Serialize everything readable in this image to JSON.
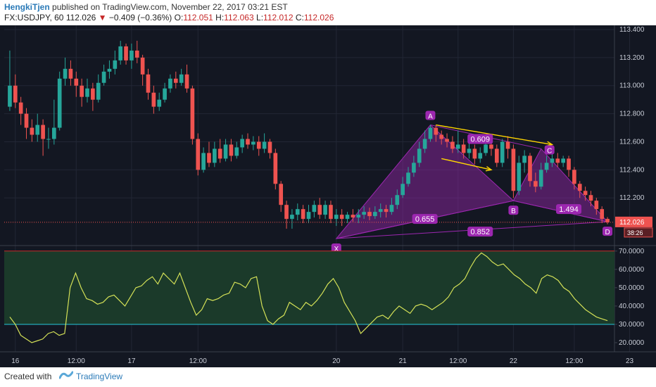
{
  "header": {
    "author": "HengkiTjen",
    "published": "published on TradingView.com, November 22, 2017 03:21 EST",
    "symbol": "FX:USDJPY, 60",
    "last": "112.026",
    "change": "−0.409 (−0.36%)",
    "o_label": "O:",
    "o_value": "112.051",
    "h_label": "H:",
    "h_value": "112.063",
    "l_label": "L:",
    "l_value": "112.012",
    "c_label": "C:",
    "c_value": "112.026"
  },
  "footer": {
    "created_with": "Created with",
    "brand": "TradingView"
  },
  "colors": {
    "background": "#131722",
    "up": "#26a69a",
    "down": "#ef5350",
    "pattern": "#9c27b0",
    "rsi_line": "#d4e157",
    "rsi_zone": "#1b3a2a",
    "arrow": "#ffd600"
  },
  "chart_data": [
    {
      "type": "candlestick",
      "symbol": "USDJPY",
      "interval": "60",
      "x_ticks": [
        "16",
        "12:00",
        "17",
        "12:00",
        "20",
        "21",
        "12:00",
        "22",
        "12:00",
        "23"
      ],
      "x_tick_pos": [
        1,
        12,
        22,
        34,
        59,
        71,
        81,
        91,
        102,
        112
      ],
      "ylim": [
        111.86,
        113.43
      ],
      "y_ticks": [
        112.2,
        112.4,
        112.6,
        112.8,
        113.0,
        113.2,
        113.4
      ],
      "last_price_label": "112.026",
      "countdown_label": "38:26",
      "candles": [
        [
          112.85,
          113.0,
          113.25,
          112.82
        ],
        [
          113.0,
          112.88,
          113.08,
          112.84
        ],
        [
          112.88,
          112.8,
          112.92,
          112.72
        ],
        [
          112.8,
          112.7,
          112.84,
          112.62
        ],
        [
          112.7,
          112.65,
          112.76,
          112.6
        ],
        [
          112.65,
          112.72,
          112.8,
          112.6
        ],
        [
          112.72,
          112.62,
          112.76,
          112.5
        ],
        [
          112.62,
          112.62,
          112.7,
          112.55
        ],
        [
          112.62,
          112.7,
          112.9,
          112.58
        ],
        [
          112.7,
          113.05,
          113.1,
          112.68
        ],
        [
          113.05,
          113.12,
          113.2,
          113.0
        ],
        [
          113.12,
          113.05,
          113.18,
          113.0
        ],
        [
          113.05,
          113.0,
          113.1,
          112.92
        ],
        [
          113.0,
          112.92,
          113.05,
          112.85
        ],
        [
          112.92,
          112.98,
          113.05,
          112.88
        ],
        [
          112.98,
          112.9,
          113.02,
          112.82
        ],
        [
          112.9,
          113.02,
          113.08,
          112.88
        ],
        [
          113.02,
          113.1,
          113.15,
          113.0
        ],
        [
          113.1,
          113.12,
          113.18,
          113.05
        ],
        [
          113.12,
          113.18,
          113.25,
          113.08
        ],
        [
          113.18,
          113.28,
          113.32,
          113.15
        ],
        [
          113.28,
          113.18,
          113.3,
          113.15
        ],
        [
          113.18,
          113.25,
          113.3,
          113.12
        ],
        [
          113.25,
          113.2,
          113.32,
          113.16
        ],
        [
          113.2,
          113.08,
          113.22,
          113.0
        ],
        [
          113.08,
          112.95,
          113.12,
          112.9
        ],
        [
          112.95,
          112.85,
          113.0,
          112.8
        ],
        [
          112.85,
          112.9,
          112.95,
          112.82
        ],
        [
          112.9,
          112.98,
          113.02,
          112.88
        ],
        [
          112.98,
          113.05,
          113.08,
          112.95
        ],
        [
          113.05,
          113.02,
          113.1,
          112.98
        ],
        [
          113.02,
          113.08,
          113.12,
          113.0
        ],
        [
          113.08,
          112.98,
          113.15,
          112.95
        ],
        [
          112.98,
          112.62,
          113.0,
          112.58
        ],
        [
          112.62,
          112.4,
          112.66,
          112.36
        ],
        [
          112.4,
          112.52,
          112.56,
          112.38
        ],
        [
          112.52,
          112.45,
          112.6,
          112.42
        ],
        [
          112.45,
          112.55,
          112.6,
          112.42
        ],
        [
          112.55,
          112.48,
          112.62,
          112.45
        ],
        [
          112.48,
          112.58,
          112.62,
          112.46
        ],
        [
          112.58,
          112.5,
          112.62,
          112.46
        ],
        [
          112.5,
          112.56,
          112.6,
          112.48
        ],
        [
          112.56,
          112.62,
          112.65,
          112.52
        ],
        [
          112.62,
          112.58,
          112.66,
          112.55
        ],
        [
          112.58,
          112.6,
          112.64,
          112.54
        ],
        [
          112.6,
          112.55,
          112.64,
          112.5
        ],
        [
          112.55,
          112.6,
          112.66,
          112.52
        ],
        [
          112.6,
          112.52,
          112.62,
          112.48
        ],
        [
          112.52,
          112.3,
          112.55,
          112.26
        ],
        [
          112.3,
          112.15,
          112.32,
          112.1
        ],
        [
          112.15,
          112.05,
          112.18,
          111.98
        ],
        [
          112.05,
          112.08,
          112.12,
          111.98
        ],
        [
          112.08,
          112.12,
          112.16,
          112.04
        ],
        [
          112.12,
          112.05,
          112.15,
          112.02
        ],
        [
          112.05,
          112.1,
          112.15,
          112.02
        ],
        [
          112.1,
          112.15,
          112.18,
          112.06
        ],
        [
          112.15,
          112.08,
          112.2,
          112.05
        ],
        [
          112.08,
          112.15,
          112.18,
          112.05
        ],
        [
          112.15,
          112.05,
          112.18,
          112.02
        ],
        [
          112.05,
          112.08,
          112.12,
          112.0
        ],
        [
          112.08,
          112.05,
          112.12,
          112.0
        ],
        [
          112.05,
          112.08,
          112.1,
          112.02
        ],
        [
          112.08,
          112.06,
          112.12,
          112.03
        ],
        [
          112.06,
          112.08,
          112.12,
          112.02
        ],
        [
          112.08,
          112.1,
          112.14,
          112.05
        ],
        [
          112.1,
          112.07,
          112.13,
          112.04
        ],
        [
          112.07,
          112.1,
          112.14,
          112.05
        ],
        [
          112.1,
          112.12,
          112.16,
          112.06
        ],
        [
          112.12,
          112.1,
          112.15,
          112.06
        ],
        [
          112.1,
          112.15,
          112.2,
          112.08
        ],
        [
          112.15,
          112.22,
          112.26,
          112.12
        ],
        [
          112.22,
          112.3,
          112.35,
          112.2
        ],
        [
          112.3,
          112.38,
          112.42,
          112.28
        ],
        [
          112.38,
          112.45,
          112.5,
          112.35
        ],
        [
          112.45,
          112.55,
          112.6,
          112.42
        ],
        [
          112.55,
          112.62,
          112.68,
          112.52
        ],
        [
          112.62,
          112.7,
          112.72,
          112.6
        ],
        [
          112.7,
          112.65,
          112.72,
          112.6
        ],
        [
          112.65,
          112.62,
          112.68,
          112.58
        ],
        [
          112.62,
          112.6,
          112.66,
          112.56
        ],
        [
          112.6,
          112.55,
          112.64,
          112.52
        ],
        [
          112.55,
          112.58,
          112.68,
          112.52
        ],
        [
          112.58,
          112.52,
          112.62,
          112.48
        ],
        [
          112.52,
          112.55,
          112.6,
          112.48
        ],
        [
          112.55,
          112.48,
          112.58,
          112.44
        ],
        [
          112.48,
          112.52,
          112.56,
          112.45
        ],
        [
          112.52,
          112.58,
          112.62,
          112.5
        ],
        [
          112.58,
          112.55,
          112.62,
          112.5
        ],
        [
          112.55,
          112.45,
          112.58,
          112.42
        ],
        [
          112.45,
          112.6,
          112.62,
          112.42
        ],
        [
          112.6,
          112.55,
          112.64,
          112.48
        ],
        [
          112.55,
          112.25,
          112.58,
          112.2
        ],
        [
          112.25,
          112.45,
          112.5,
          112.22
        ],
        [
          112.45,
          112.5,
          112.54,
          112.38
        ],
        [
          112.5,
          112.32,
          112.52,
          112.28
        ],
        [
          112.32,
          112.28,
          112.38,
          112.24
        ],
        [
          112.28,
          112.4,
          112.45,
          112.26
        ],
        [
          112.4,
          112.45,
          112.5,
          112.38
        ],
        [
          112.45,
          112.48,
          112.52,
          112.42
        ],
        [
          112.48,
          112.45,
          112.52,
          112.42
        ],
        [
          112.45,
          112.48,
          112.5,
          112.42
        ],
        [
          112.48,
          112.4,
          112.5,
          112.35
        ],
        [
          112.4,
          112.3,
          112.42,
          112.26
        ],
        [
          112.3,
          112.25,
          112.32,
          112.2
        ],
        [
          112.25,
          112.22,
          112.28,
          112.18
        ],
        [
          112.22,
          112.18,
          112.25,
          112.14
        ],
        [
          112.18,
          112.12,
          112.2,
          112.08
        ],
        [
          112.12,
          112.05,
          112.14,
          112.02
        ],
        [
          112.05,
          112.026,
          112.063,
          112.012
        ]
      ],
      "harmonic_pattern": {
        "points": [
          {
            "label": "X",
            "index": 59,
            "price": 111.91
          },
          {
            "label": "A",
            "index": 76,
            "price": 112.72
          },
          {
            "label": "B",
            "index": 91,
            "price": 112.18
          },
          {
            "label": "C",
            "index": 96,
            "price": 112.55
          },
          {
            "label": "D",
            "index": 108,
            "price": 112.03
          }
        ],
        "ratios": [
          {
            "label": "0.609",
            "index": 85,
            "price": 112.62
          },
          {
            "label": "0.655",
            "index": 75,
            "price": 112.05
          },
          {
            "label": "0.852",
            "index": 85,
            "price": 111.96
          },
          {
            "label": "1.494",
            "index": 101,
            "price": 112.12
          }
        ],
        "arrows": [
          {
            "from_index": 77,
            "from_price": 112.72,
            "to_index": 98,
            "to_price": 112.58
          },
          {
            "from_index": 78,
            "from_price": 112.48,
            "to_index": 87,
            "to_price": 112.4
          }
        ]
      }
    },
    {
      "type": "line",
      "name": "",
      "ylim": [
        15,
        73
      ],
      "y_ticks": [
        20.0,
        30.0,
        40.0,
        50.0,
        60.0,
        70.0
      ],
      "y_tick_labels": [
        "20.0000",
        "30.0000",
        "40.0000",
        "50.0000",
        "60.0000",
        "70.0000"
      ],
      "bands": [
        30,
        70
      ],
      "values": [
        34,
        30,
        24,
        22,
        20,
        21,
        22,
        25,
        26,
        24,
        25,
        50,
        58,
        50,
        44,
        43,
        41,
        42,
        45,
        46,
        43,
        40,
        45,
        50,
        51,
        54,
        56,
        52,
        58,
        55,
        52,
        58,
        50,
        42,
        35,
        38,
        44,
        43,
        44,
        46,
        47,
        53,
        52,
        50,
        55,
        56,
        40,
        32,
        30,
        33,
        35,
        42,
        40,
        38,
        42,
        40,
        43,
        47,
        52,
        55,
        50,
        42,
        37,
        32,
        25,
        28,
        31,
        34,
        35,
        33,
        37,
        40,
        38,
        36,
        40,
        41,
        40,
        38,
        40,
        42,
        45,
        50,
        52,
        55,
        61,
        66,
        69,
        67,
        64,
        62,
        63,
        60,
        57,
        55,
        52,
        50,
        47,
        55,
        57,
        56,
        54,
        50,
        48,
        44,
        41,
        38,
        36,
        34,
        33,
        32
      ]
    }
  ]
}
